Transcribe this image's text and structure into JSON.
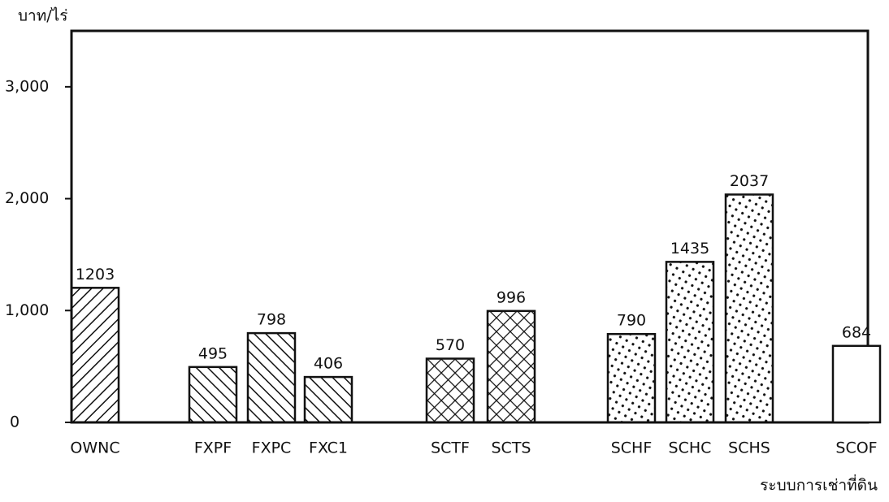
{
  "chart_data": {
    "type": "bar",
    "y_label": "บาท/ไร่",
    "x_label": "ระบบการเช่าที่ดิน",
    "categories": [
      "OWNC",
      "FXPF",
      "FXPC",
      "FXC1",
      "SCTF",
      "SCTS",
      "SCHF",
      "SCHC",
      "SCHS",
      "SCOF"
    ],
    "values": [
      1203,
      495,
      798,
      406,
      570,
      996,
      790,
      1435,
      2037,
      684
    ],
    "color": "#111111",
    "ylim": [
      0,
      3500
    ],
    "yticks": [
      0,
      {
        "value": 1000,
        "label": "1,000"
      },
      {
        "value": 2000,
        "label": "2,000"
      },
      {
        "value": 3000,
        "label": "3,000"
      }
    ]
  }
}
